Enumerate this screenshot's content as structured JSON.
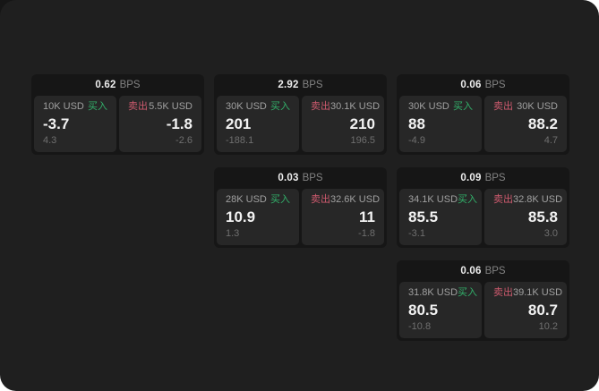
{
  "labels": {
    "bps_unit": "BPS",
    "buy": "买入",
    "sell": "卖出"
  },
  "cards": [
    {
      "bps": "0.62",
      "buy": {
        "amount": "10K USD",
        "value": "-3.7",
        "sub": "4.3"
      },
      "sell": {
        "amount": "5.5K USD",
        "value": "-1.8",
        "sub": "-2.6"
      }
    },
    {
      "bps": "2.92",
      "buy": {
        "amount": "30K USD",
        "value": "201",
        "sub": "-188.1"
      },
      "sell": {
        "amount": "30.1K USD",
        "value": "210",
        "sub": "196.5"
      }
    },
    {
      "bps": "0.06",
      "buy": {
        "amount": "30K USD",
        "value": "88",
        "sub": "-4.9"
      },
      "sell": {
        "amount": "30K USD",
        "value": "88.2",
        "sub": "4.7"
      }
    },
    {
      "bps": "0.03",
      "buy": {
        "amount": "28K USD",
        "value": "10.9",
        "sub": "1.3"
      },
      "sell": {
        "amount": "32.6K USD",
        "value": "11",
        "sub": "-1.8"
      }
    },
    {
      "bps": "0.09",
      "buy": {
        "amount": "34.1K USD",
        "value": "85.5",
        "sub": "-3.1"
      },
      "sell": {
        "amount": "32.8K USD",
        "value": "85.8",
        "sub": "3.0"
      }
    },
    {
      "bps": "0.06",
      "buy": {
        "amount": "31.8K USD",
        "value": "80.5",
        "sub": "-10.8"
      },
      "sell": {
        "amount": "39.1K USD",
        "value": "80.7",
        "sub": "10.2"
      }
    }
  ],
  "colors": {
    "buy_green": "#32b06a",
    "sell_red": "#cd5a6e",
    "page_bg": "#1f1f1f",
    "card_bg": "#161616",
    "panel_bg": "#272727"
  }
}
